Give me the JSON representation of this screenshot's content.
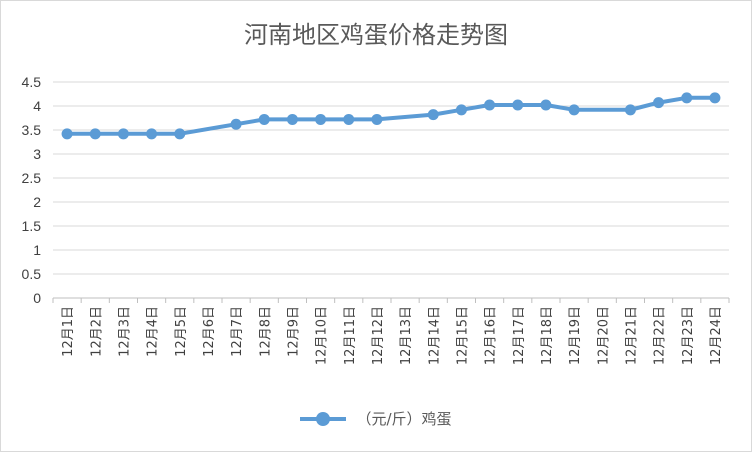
{
  "chart_data": {
    "type": "line",
    "title": "河南地区鸡蛋价格走势图",
    "categories": [
      "12月1日",
      "12月2日",
      "12月3日",
      "12月4日",
      "12月5日",
      "12月6日",
      "12月7日",
      "12月8日",
      "12月9日",
      "12月10日",
      "12月11日",
      "12月12日",
      "12月13日",
      "12月14日",
      "12月15日",
      "12月16日",
      "12月17日",
      "12月18日",
      "12月19日",
      "12月20日",
      "12月21日",
      "12月22日",
      "12月23日",
      "12月24日"
    ],
    "series": [
      {
        "name": "（元/斤）鸡蛋",
        "color": "#5b9bd5",
        "values": [
          3.42,
          3.42,
          3.42,
          3.42,
          3.42,
          null,
          3.62,
          3.72,
          3.72,
          3.72,
          3.72,
          3.72,
          null,
          3.82,
          3.92,
          4.02,
          4.02,
          4.02,
          3.92,
          null,
          3.92,
          4.07,
          4.17,
          4.17
        ]
      }
    ],
    "yticks": [
      "0",
      "0.5",
      "1",
      "1.5",
      "2",
      "2.5",
      "3",
      "3.5",
      "4",
      "4.5"
    ],
    "ylim": [
      0,
      4.5
    ],
    "grid": true,
    "legend_position": "bottom",
    "gap_mode": "connect"
  }
}
